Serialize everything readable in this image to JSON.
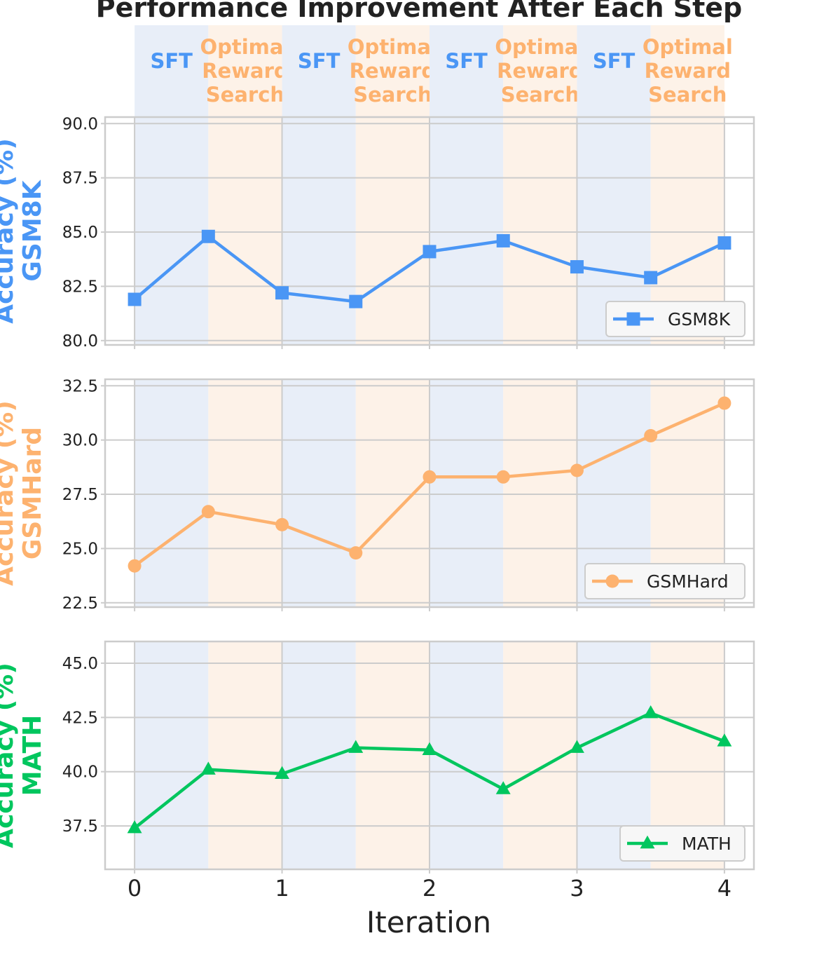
{
  "chart_data": {
    "type": "line",
    "title": "Performance Improvement After Each Step",
    "xlabel": "Iteration",
    "x": [
      0,
      0.5,
      1,
      1.5,
      2,
      2.5,
      3,
      3.5,
      4
    ],
    "xticks": [
      "0",
      "1",
      "2",
      "3",
      "4"
    ],
    "xlim": [
      -0.2,
      4.2
    ],
    "grid": true,
    "phases": [
      {
        "label": "SFT",
        "start": 0,
        "end": 0.5,
        "color": "#4a96f5",
        "bg": "#e8eef8"
      },
      {
        "label": "Optimal Reward Search",
        "lines": [
          "Optimal",
          "Reward",
          "Search"
        ],
        "start": 0.5,
        "end": 1,
        "color": "#fdb26f",
        "bg": "#fdf2e8"
      },
      {
        "label": "SFT",
        "start": 1,
        "end": 1.5,
        "color": "#4a96f5",
        "bg": "#e8eef8"
      },
      {
        "label": "Optimal Reward Search",
        "lines": [
          "Optimal",
          "Reward",
          "Search"
        ],
        "start": 1.5,
        "end": 2,
        "color": "#fdb26f",
        "bg": "#fdf2e8"
      },
      {
        "label": "SFT",
        "start": 2,
        "end": 2.5,
        "color": "#4a96f5",
        "bg": "#e8eef8"
      },
      {
        "label": "Optimal Reward Search",
        "lines": [
          "Optimal",
          "Reward",
          "Search"
        ],
        "start": 2.5,
        "end": 3,
        "color": "#fdb26f",
        "bg": "#fdf2e8"
      },
      {
        "label": "SFT",
        "start": 3,
        "end": 3.5,
        "color": "#4a96f5",
        "bg": "#e8eef8"
      },
      {
        "label": "Optimal Reward Search",
        "lines": [
          "Optimal",
          "Reward",
          "Search"
        ],
        "start": 3.5,
        "end": 4,
        "color": "#fdb26f",
        "bg": "#fdf2e8"
      }
    ],
    "panels": [
      {
        "ylabel_lines": [
          "Accuracy (%)",
          "GSM8K"
        ],
        "color": "#4a96f5",
        "ylim": [
          79.8,
          90.3
        ],
        "yticks": [
          "90.0",
          "87.5",
          "85.0",
          "82.5",
          "80.0"
        ],
        "ytick_values": [
          90.0,
          87.5,
          85.0,
          82.5,
          80.0
        ],
        "series": [
          {
            "name": "GSM8K",
            "marker": "square",
            "values": [
              81.9,
              84.8,
              82.2,
              81.8,
              84.1,
              84.6,
              83.4,
              82.9,
              84.5
            ]
          }
        ]
      },
      {
        "ylabel_lines": [
          "Accuracy (%)",
          "GSMHard"
        ],
        "color": "#fdb26f",
        "ylim": [
          22.3,
          32.8
        ],
        "yticks": [
          "32.5",
          "30.0",
          "27.5",
          "25.0",
          "22.5"
        ],
        "ytick_values": [
          32.5,
          30.0,
          27.5,
          25.0,
          22.5
        ],
        "series": [
          {
            "name": "GSMHard",
            "marker": "circle",
            "values": [
              24.2,
              26.7,
              26.1,
              24.8,
              28.3,
              28.3,
              28.6,
              30.2,
              31.7
            ]
          }
        ]
      },
      {
        "ylabel_lines": [
          "Accuracy (%)",
          "MATH"
        ],
        "color": "#00c65e",
        "ylim": [
          35.5,
          46.0
        ],
        "yticks": [
          "45.0",
          "42.5",
          "40.0",
          "37.5"
        ],
        "ytick_values": [
          45.0,
          42.5,
          40.0,
          37.5
        ],
        "series": [
          {
            "name": "MATH",
            "marker": "triangle",
            "values": [
              37.4,
              40.1,
              39.9,
              41.1,
              41.0,
              39.2,
              41.1,
              42.7,
              41.4
            ]
          }
        ]
      }
    ]
  }
}
